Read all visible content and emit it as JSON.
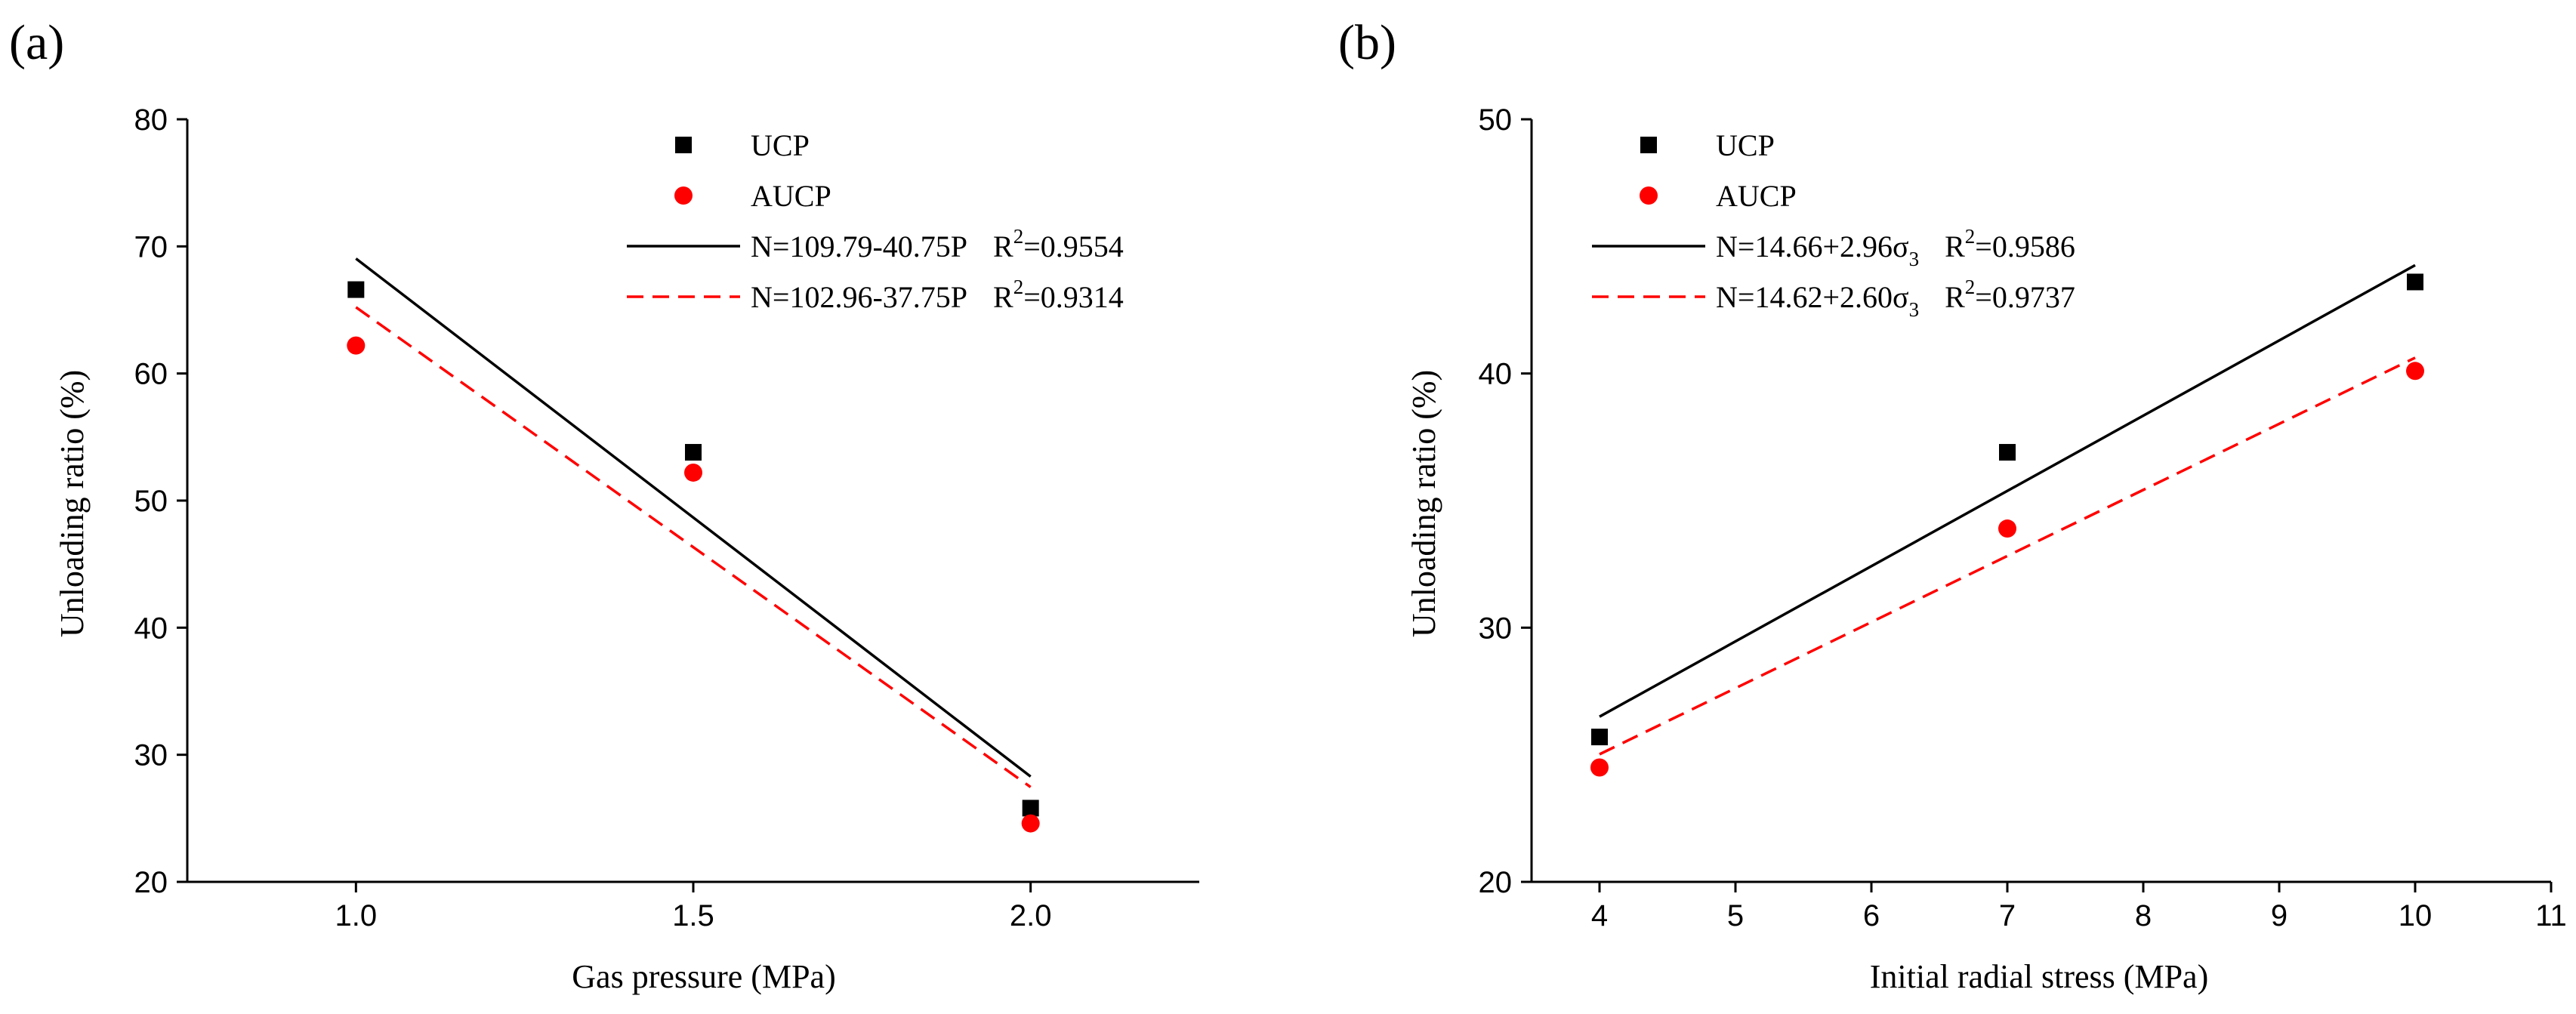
{
  "chart_data": [
    {
      "type": "scatter",
      "panel_label": "(a)",
      "title": "",
      "xlabel": "Gas pressure  (MPa)",
      "ylabel": "Unloading ratio  (%)",
      "xlim": [
        0.75,
        2.25
      ],
      "ylim": [
        20,
        80
      ],
      "xticks": [
        1.0,
        1.5,
        2.0
      ],
      "xtick_labels": [
        "1.0",
        "1.5",
        "2.0"
      ],
      "yticks": [
        20,
        30,
        40,
        50,
        60,
        70,
        80
      ],
      "ytick_labels": [
        "20",
        "30",
        "40",
        "50",
        "60",
        "70",
        "80"
      ],
      "grid": false,
      "legend_position": "top-right",
      "series": [
        {
          "name": "UCP",
          "marker": "square",
          "color": "#000000",
          "x": [
            1.0,
            1.5,
            2.0
          ],
          "y": [
            66.6,
            53.8,
            25.8
          ]
        },
        {
          "name": "AUCP",
          "marker": "circle",
          "color": "#ff0000",
          "x": [
            1.0,
            1.5,
            2.0
          ],
          "y": [
            62.2,
            52.2,
            24.6
          ]
        }
      ],
      "fits": [
        {
          "label": "N=109.79-40.75P",
          "r2_base": "R",
          "r2_sup": "2",
          "r2_value": "=0.9554",
          "color": "#000000",
          "dash": "solid",
          "x": [
            1.0,
            2.0
          ],
          "y": [
            69.04,
            28.29
          ]
        },
        {
          "label": "N=102.96-37.75P",
          "r2_base": "R",
          "r2_sup": "2",
          "r2_value": "=0.9314",
          "color": "#ff0000",
          "dash": "dashed",
          "x": [
            1.0,
            2.0
          ],
          "y": [
            65.21,
            27.46
          ]
        }
      ]
    },
    {
      "type": "scatter",
      "panel_label": "(b)",
      "title": "",
      "xlabel": "Initial radial stress  (MPa)",
      "ylabel": "Unloading ratio  (%)",
      "xlim": [
        3.5,
        11
      ],
      "ylim": [
        20,
        50
      ],
      "xticks": [
        4,
        5,
        6,
        7,
        8,
        9,
        10,
        11
      ],
      "xtick_labels": [
        "4",
        "5",
        "6",
        "7",
        "8",
        "9",
        "10",
        "11"
      ],
      "yticks": [
        20,
        30,
        40,
        50
      ],
      "ytick_labels": [
        "20",
        "30",
        "40",
        "50"
      ],
      "grid": false,
      "legend_position": "top-left",
      "series": [
        {
          "name": "UCP",
          "marker": "square",
          "color": "#000000",
          "x": [
            4,
            7,
            10
          ],
          "y": [
            25.7,
            36.9,
            43.6
          ]
        },
        {
          "name": "AUCP",
          "marker": "circle",
          "color": "#ff0000",
          "x": [
            4,
            7,
            10
          ],
          "y": [
            24.5,
            33.9,
            40.1
          ]
        }
      ],
      "fits": [
        {
          "label": "N=14.66+2.96σ",
          "label_sub": "3",
          "r2_base": "R",
          "r2_sup": "2",
          "r2_value": "=0.9586",
          "color": "#000000",
          "dash": "solid",
          "x": [
            4,
            10
          ],
          "y": [
            26.5,
            44.26
          ]
        },
        {
          "label": "N=14.62+2.60σ",
          "label_sub": "3",
          "r2_base": "R",
          "r2_sup": "2",
          "r2_value": "=0.9737",
          "color": "#ff0000",
          "dash": "dashed",
          "x": [
            4,
            10
          ],
          "y": [
            25.02,
            40.62
          ]
        }
      ]
    }
  ]
}
